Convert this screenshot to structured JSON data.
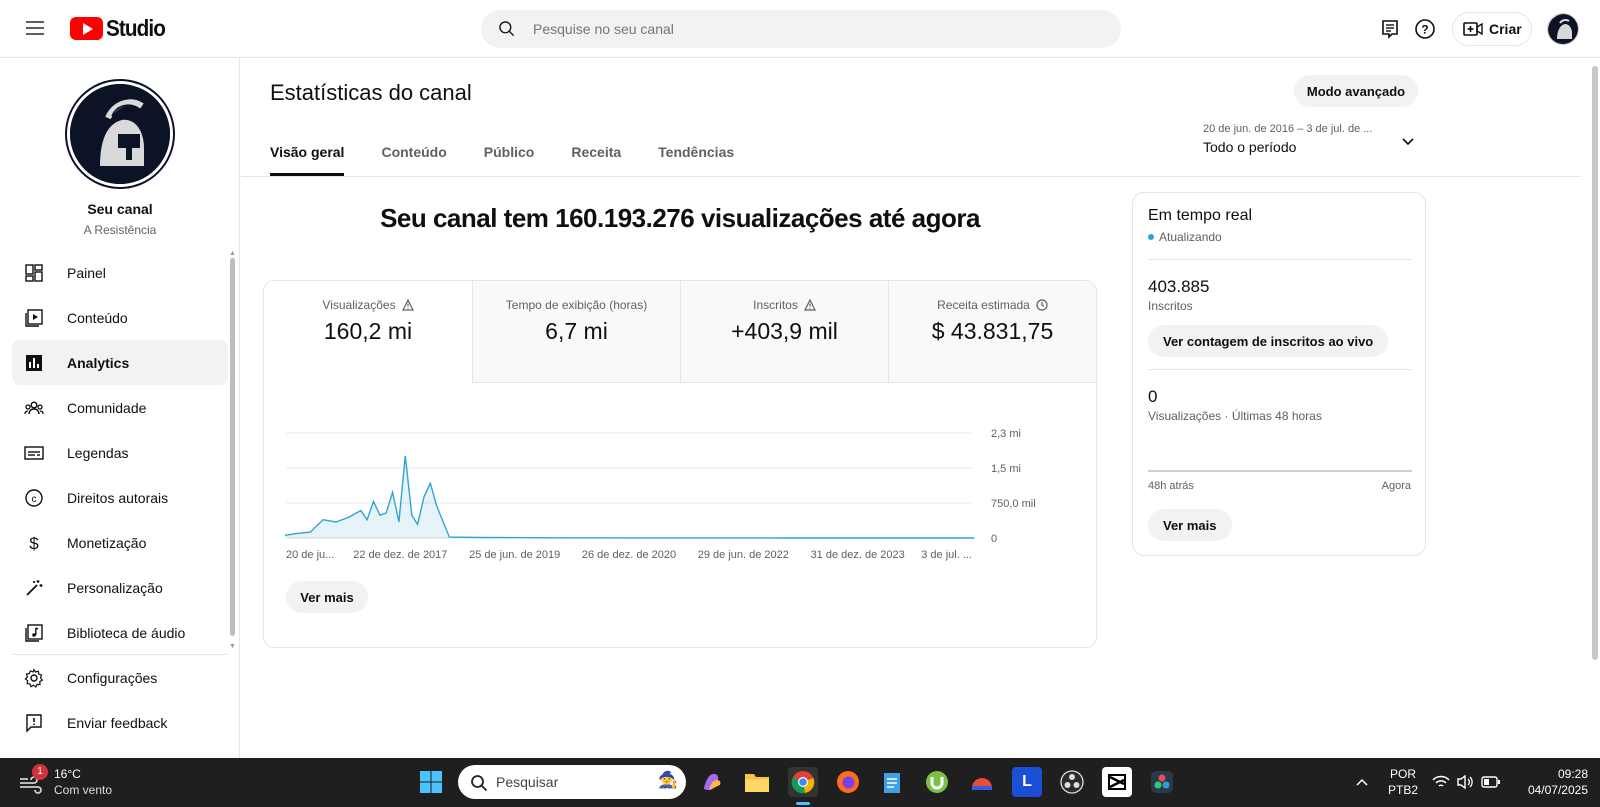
{
  "app": {
    "logo_text": "Studio",
    "search_placeholder": "Pesquise no seu canal",
    "create_label": "Criar"
  },
  "channel": {
    "name": "Seu canal",
    "subtitle": "A Resistência"
  },
  "sidebar": {
    "items": [
      {
        "label": "Painel",
        "icon": "dashboard-icon"
      },
      {
        "label": "Conteúdo",
        "icon": "content-icon"
      },
      {
        "label": "Analytics",
        "icon": "analytics-icon",
        "active": true
      },
      {
        "label": "Comunidade",
        "icon": "community-icon"
      },
      {
        "label": "Legendas",
        "icon": "subtitles-icon"
      },
      {
        "label": "Direitos autorais",
        "icon": "copyright-icon"
      },
      {
        "label": "Monetização",
        "icon": "monetization-icon"
      },
      {
        "label": "Personalização",
        "icon": "customization-icon"
      },
      {
        "label": "Biblioteca de áudio",
        "icon": "audio-library-icon"
      }
    ],
    "bottom": [
      {
        "label": "Configurações",
        "icon": "settings-icon"
      },
      {
        "label": "Enviar feedback",
        "icon": "feedback-icon"
      }
    ]
  },
  "main": {
    "title": "Estatísticas do canal",
    "advanced_mode": "Modo avançado",
    "tabs": [
      {
        "label": "Visão geral",
        "active": true
      },
      {
        "label": "Conteúdo"
      },
      {
        "label": "Público"
      },
      {
        "label": "Receita"
      },
      {
        "label": "Tendências"
      }
    ],
    "period_range": "20 de jun. de 2016 – 3 de jul. de ...",
    "period_label": "Todo o período",
    "headline": "Seu canal tem 160.193.276 visualizações até agora",
    "metrics": [
      {
        "label": "Visualizações",
        "value": "160,2 mi",
        "icon": "warning-icon"
      },
      {
        "label": "Tempo de exibição (horas)",
        "value": "6,7 mi",
        "icon": ""
      },
      {
        "label": "Inscritos",
        "value": "+403,9 mil",
        "icon": "warning-icon"
      },
      {
        "label": "Receita estimada",
        "value": "$ 43.831,75",
        "icon": "clock-icon"
      }
    ],
    "see_more": "Ver mais"
  },
  "chart_data": {
    "type": "line",
    "title": "",
    "y_ticks": [
      "2,3 mi",
      "1,5 mi",
      "750,0 mil",
      "0"
    ],
    "x_ticks": [
      "20 de ju...",
      "22 de dez. de 2017",
      "25 de jun. de 2019",
      "26 de dez. de 2020",
      "29 de jun. de 2022",
      "31 de dez. de 2023",
      "3 de jul. ..."
    ],
    "ylim": [
      0,
      2300000
    ],
    "series": [
      {
        "color": "#30a4d3",
        "x": [
          "2016-06",
          "2016-08",
          "2016-10",
          "2016-12",
          "2017-02",
          "2017-04",
          "2017-06",
          "2017-07",
          "2017-08",
          "2017-09",
          "2017-10",
          "2017-11",
          "2017-12",
          "2018-01",
          "2018-02",
          "2018-03",
          "2018-04",
          "2018-05",
          "2018-06",
          "2018-08",
          "2019-01",
          "2020-01",
          "2021-01",
          "2022-01",
          "2023-01",
          "2024-01",
          "2025-07"
        ],
        "values": [
          60000,
          100000,
          130000,
          400000,
          350000,
          450000,
          600000,
          400000,
          800000,
          500000,
          550000,
          1000000,
          350000,
          1800000,
          500000,
          300000,
          900000,
          1200000,
          700000,
          20000,
          10000,
          5000,
          3000,
          2000,
          1000,
          500,
          0
        ]
      }
    ]
  },
  "realtime": {
    "title": "Em tempo real",
    "status": "Atualizando",
    "subscribers_value": "403.885",
    "subscribers_label": "Inscritos",
    "live_button": "Ver contagem de inscritos ao vivo",
    "views_value": "0",
    "views_label": "Visualizações · Últimas 48 horas",
    "axis_start": "48h atrás",
    "axis_end": "Agora",
    "see_more": "Ver mais"
  },
  "taskbar": {
    "weather_temp": "16°C",
    "weather_desc": "Com vento",
    "weather_badge": "1",
    "search_label": "Pesquisar",
    "lang_top": "POR",
    "lang_bottom": "PTB2",
    "time": "09:28",
    "date": "04/07/2025"
  },
  "colors": {
    "accent": "#30a4d3",
    "youtube_red": "#ff0000"
  }
}
